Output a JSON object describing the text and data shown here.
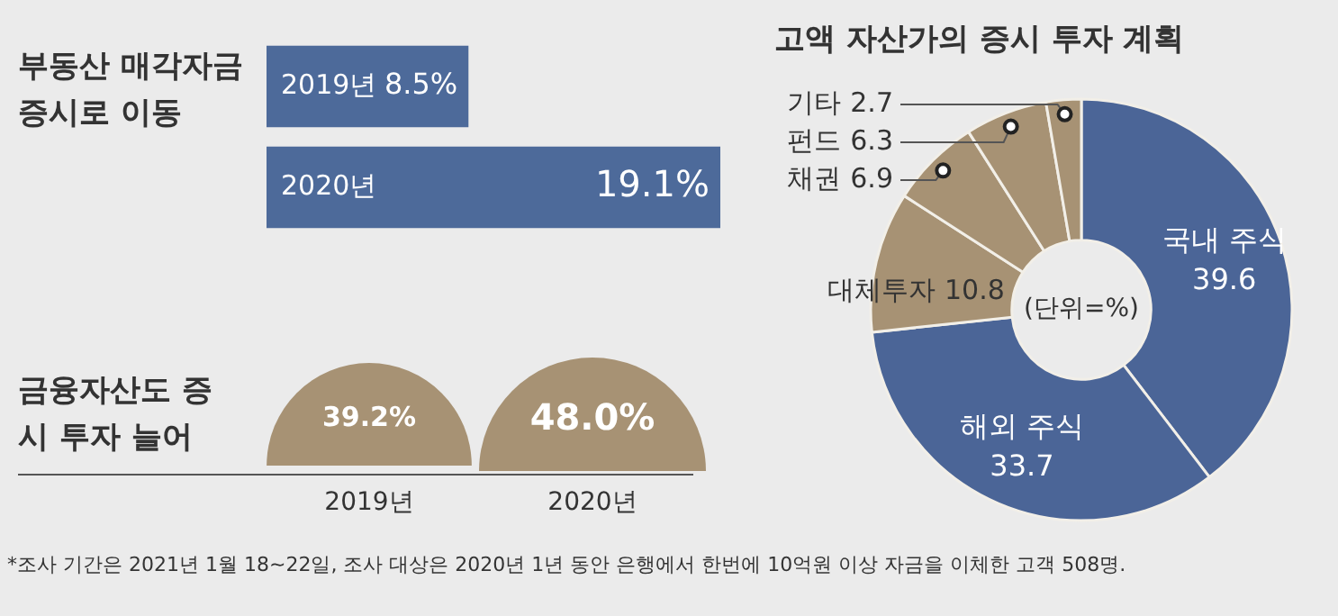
{
  "chart_data": [
    {
      "type": "bar",
      "orientation": "horizontal",
      "title": "부동산 매각자금 증시로 이동",
      "categories": [
        "2019년",
        "2020년"
      ],
      "values": [
        8.5,
        19.1
      ],
      "value_labels": [
        "8.5%",
        "19.1%"
      ],
      "color": "#4d6a9a"
    },
    {
      "type": "other",
      "title": "금융자산도 증시 투자 늘어",
      "categories": [
        "2019년",
        "2020년"
      ],
      "values": [
        39.2,
        48.0
      ],
      "value_labels": [
        "39.2%",
        "48.0%"
      ],
      "color": "#a79274"
    },
    {
      "type": "donut",
      "title": "고액 자산가의 증시 투자 계획",
      "categories": [
        "국내 주식",
        "해외 주식",
        "대체투자",
        "채권",
        "펀드",
        "기타"
      ],
      "values": [
        39.6,
        33.7,
        10.8,
        6.9,
        6.3,
        2.7
      ],
      "colors": [
        "#4b6597",
        "#4b6597",
        "#a79274",
        "#a79274",
        "#a79274",
        "#a79274"
      ],
      "data_labels": true,
      "annotations": [
        "(단위=%)",
        "*조사 기간은 2021년 1월 18~22일, 조사 대상은 2020년 1년 동안 은행에서 한번에 10억원 이상 자금을 이체한 고객 508명."
      ]
    }
  ]
}
